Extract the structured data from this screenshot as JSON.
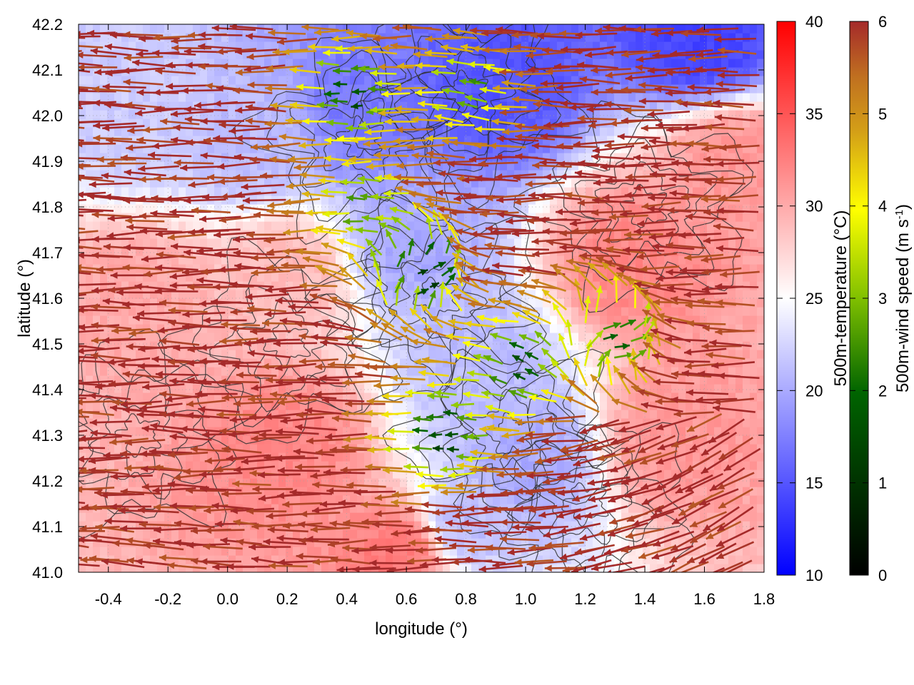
{
  "chart_data": {
    "type": "heatmap",
    "title": "",
    "xlabel": "longitude (°)",
    "ylabel": "latitude (°)",
    "xlim": [
      -0.5,
      1.8
    ],
    "ylim": [
      41.0,
      42.2
    ],
    "x_ticks": [
      -0.4,
      -0.2,
      0.0,
      0.2,
      0.4,
      0.6,
      0.8,
      1.0,
      1.2,
      1.4,
      1.6,
      1.8
    ],
    "x_tick_labels": [
      "-0.4",
      "-0.2",
      "0.0",
      "0.2",
      "0.4",
      "0.6",
      "0.8",
      "1.0",
      "1.2",
      "1.4",
      "1.6",
      "1.8"
    ],
    "y_ticks": [
      41.0,
      41.1,
      41.2,
      41.3,
      41.4,
      41.5,
      41.6,
      41.7,
      41.8,
      41.9,
      42.0,
      42.1,
      42.2
    ],
    "y_tick_labels": [
      "41.0",
      "41.1",
      "41.2",
      "41.3",
      "41.4",
      "41.5",
      "41.6",
      "41.7",
      "41.8",
      "41.9",
      "42.0",
      "42.1",
      "42.2"
    ],
    "grid": true,
    "temperature_colorbar": {
      "label": "500m-temperature (°C)",
      "range": [
        10,
        40
      ],
      "ticks": [
        10,
        15,
        20,
        25,
        30,
        35,
        40
      ],
      "tick_labels": [
        "10",
        "15",
        "20",
        "25",
        "30",
        "35",
        "40"
      ],
      "colors": [
        "#0000ff",
        "#ffffff",
        "#ff0000"
      ]
    },
    "wind_colorbar": {
      "label_main": "500m-wind speed (m s",
      "label_sup": "-1",
      "label_end": ")",
      "range": [
        0,
        6
      ],
      "ticks": [
        0,
        1,
        2,
        3,
        4,
        5,
        6
      ],
      "tick_labels": [
        "0",
        "1",
        "2",
        "3",
        "4",
        "5",
        "6"
      ],
      "colors": [
        "#000000",
        "#006400",
        "#80c000",
        "#ffff00",
        "#d4a017",
        "#c07020",
        "#a52a2a"
      ]
    },
    "temperature_regions": [
      {
        "lon": 0.45,
        "lat": 42.02,
        "temp": 17
      },
      {
        "lon": 0.62,
        "lat": 41.72,
        "temp": 20
      },
      {
        "lon": 0.85,
        "lat": 41.45,
        "temp": 21
      },
      {
        "lon": 1.0,
        "lat": 41.25,
        "temp": 20
      },
      {
        "lon": 0.78,
        "lat": 41.1,
        "temp": 21
      },
      {
        "lon": 0.1,
        "lat": 41.95,
        "temp": 21
      },
      {
        "lon": -0.3,
        "lat": 42.0,
        "temp": 22
      },
      {
        "lon": 1.6,
        "lat": 42.17,
        "temp": 14
      },
      {
        "lon": 0.9,
        "lat": 42.07,
        "temp": 15
      },
      {
        "lon": 0.2,
        "lat": 41.28,
        "temp": 32
      },
      {
        "lon": 0.6,
        "lat": 41.05,
        "temp": 33
      },
      {
        "lon": 1.35,
        "lat": 41.68,
        "temp": 32
      },
      {
        "lon": 1.5,
        "lat": 41.3,
        "temp": 31
      },
      {
        "lon": -0.3,
        "lat": 41.6,
        "temp": 30
      },
      {
        "lon": 1.7,
        "lat": 41.9,
        "temp": 31
      },
      {
        "lon": 0.2,
        "lat": 41.65,
        "temp": 29
      }
    ],
    "wind_regions": [
      {
        "lon": 0.45,
        "lat": 42.05,
        "speed": 1.5,
        "dir": 180
      },
      {
        "lon": 0.65,
        "lat": 41.65,
        "speed": 0.8,
        "dir": 0
      },
      {
        "lon": 0.75,
        "lat": 41.3,
        "speed": 1.2,
        "dir": 180
      },
      {
        "lon": 1.0,
        "lat": 41.45,
        "speed": 1.5,
        "dir": 160
      },
      {
        "lon": 1.3,
        "lat": 41.5,
        "speed": 2.0,
        "dir": 0
      },
      {
        "lon": 0.5,
        "lat": 41.8,
        "speed": 2.5,
        "dir": 180
      },
      {
        "lon": 0.85,
        "lat": 42.05,
        "speed": 2.5,
        "dir": 170
      }
    ],
    "ambient_wind": {
      "speed": 6,
      "dir": 180
    },
    "contour_levels": 5
  }
}
